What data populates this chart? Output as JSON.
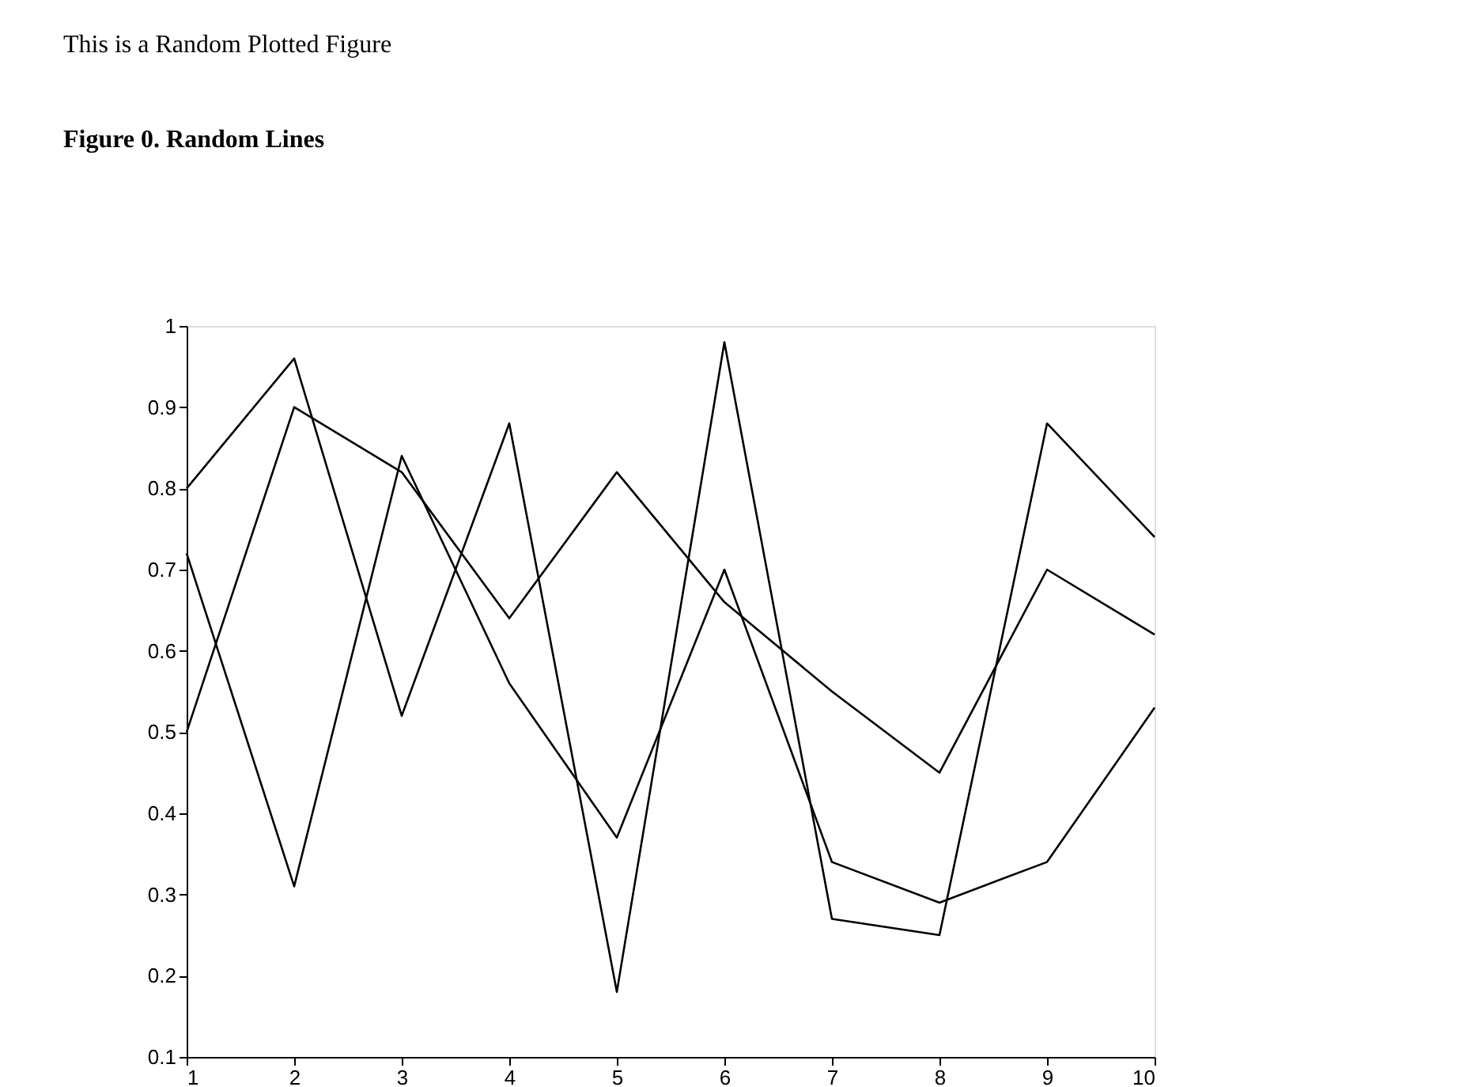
{
  "chart_data": {
    "type": "line",
    "title": "Figure 0. Random Lines",
    "annotations": [
      "This is a Random Plotted Figure"
    ],
    "x": [
      1,
      2,
      3,
      4,
      5,
      6,
      7,
      8,
      9,
      10
    ],
    "series": [
      {
        "color": "#000000",
        "values": [
          0.8,
          0.96,
          0.52,
          0.88,
          0.18,
          0.98,
          0.27,
          0.25,
          0.88,
          0.74
        ]
      },
      {
        "color": "#000000",
        "values": [
          0.72,
          0.31,
          0.84,
          0.56,
          0.37,
          0.7,
          0.34,
          0.29,
          0.34,
          0.53
        ]
      },
      {
        "color": "#000000",
        "values": [
          0.5,
          0.9,
          0.82,
          0.64,
          0.82,
          0.66,
          0.55,
          0.45,
          0.7,
          0.62
        ]
      }
    ],
    "xlim": [
      1,
      10
    ],
    "xticks": [
      1,
      2,
      3,
      4,
      5,
      6,
      7,
      8,
      9,
      10
    ],
    "ylim": [
      0.1,
      1
    ],
    "yticks": [
      0.1,
      0.2,
      0.3,
      0.4,
      0.5,
      0.6,
      0.7,
      0.8,
      0.9,
      1
    ],
    "grid": false,
    "legend": false,
    "marker": "none",
    "line_style": "solid"
  }
}
